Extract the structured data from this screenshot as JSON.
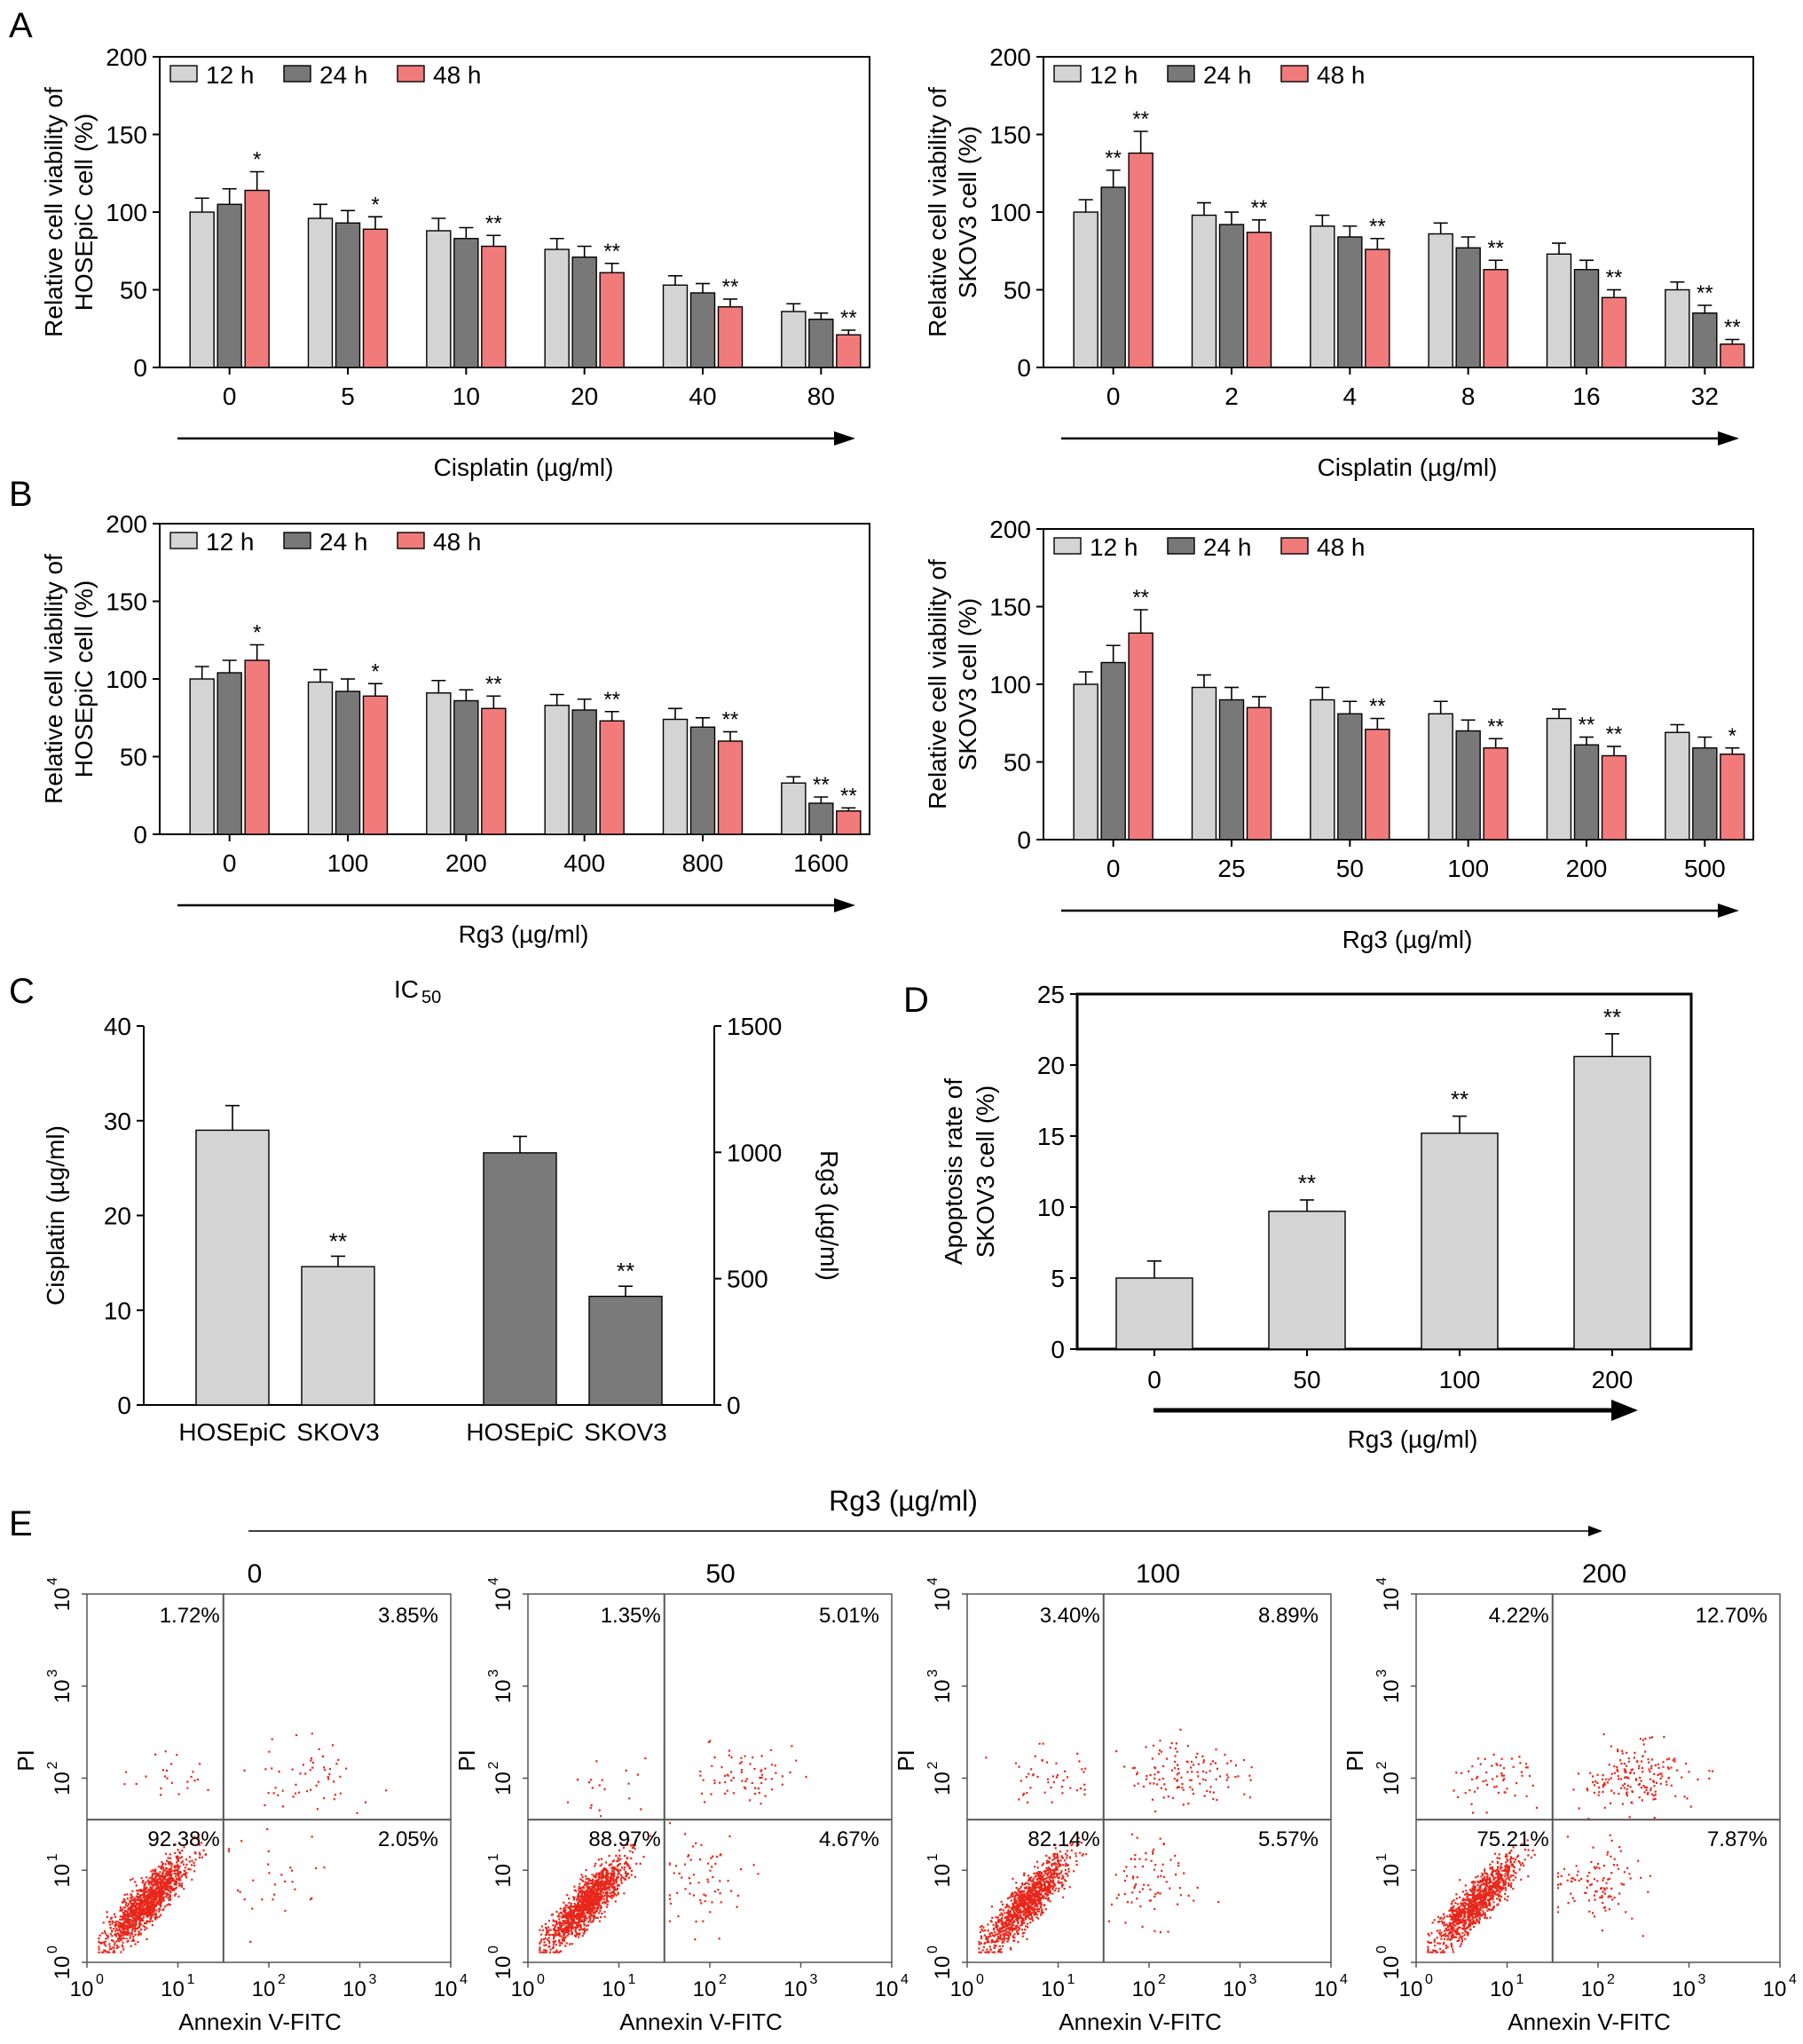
{
  "colors": {
    "h12": "#d4d4d4",
    "h24": "#787878",
    "h48": "#f17a7a",
    "dark": "#7a7a7a",
    "light": "#d4d4d4",
    "dots": "#e8261a",
    "stroke": "#000000"
  },
  "panel_labels": {
    "A": "A",
    "B": "B",
    "C": "C",
    "D": "D",
    "E": "E"
  },
  "chart_data": [
    {
      "id": "A-left",
      "type": "bar",
      "ylabel_lines": [
        "Relative cell viability of",
        "HOSEpiC cell (%)"
      ],
      "xlabel": "Cisplatin (µg/ml)",
      "ylim": [
        0,
        200
      ],
      "yticks": [
        "0",
        "50",
        "100",
        "150",
        "200"
      ],
      "categories": [
        "0",
        "5",
        "10",
        "20",
        "40",
        "80"
      ],
      "legend": [
        "12 h",
        "24 h",
        "48 h"
      ],
      "series": [
        {
          "name": "12 h",
          "values": [
            100,
            96,
            88,
            76,
            53,
            36
          ],
          "errors": [
            9,
            9,
            8,
            7,
            6,
            5
          ],
          "marks": [
            "",
            "",
            "",
            "",
            "",
            ""
          ]
        },
        {
          "name": "24 h",
          "values": [
            105,
            93,
            83,
            71,
            48,
            31
          ],
          "errors": [
            10,
            8,
            7,
            7,
            6,
            4
          ],
          "marks": [
            "",
            "",
            "",
            "",
            "",
            ""
          ]
        },
        {
          "name": "48 h",
          "values": [
            114,
            89,
            78,
            61,
            39,
            21
          ],
          "errors": [
            12,
            8,
            7,
            6,
            5,
            3
          ],
          "marks": [
            "*",
            "*",
            "**",
            "**",
            "**",
            "**"
          ]
        }
      ]
    },
    {
      "id": "A-right",
      "type": "bar",
      "ylabel_lines": [
        "Relative cell viability of",
        "SKOV3 cell (%)"
      ],
      "xlabel": "Cisplatin (µg/ml)",
      "ylim": [
        0,
        200
      ],
      "yticks": [
        "0",
        "50",
        "100",
        "150",
        "200"
      ],
      "categories": [
        "0",
        "2",
        "4",
        "8",
        "16",
        "32"
      ],
      "legend": [
        "12 h",
        "24 h",
        "48 h"
      ],
      "series": [
        {
          "name": "12 h",
          "values": [
            100,
            98,
            91,
            86,
            73,
            50
          ],
          "errors": [
            8,
            8,
            7,
            7,
            7,
            5
          ],
          "marks": [
            "",
            "",
            "",
            "",
            "",
            ""
          ]
        },
        {
          "name": "24 h",
          "values": [
            116,
            92,
            84,
            77,
            63,
            35
          ],
          "errors": [
            11,
            8,
            7,
            7,
            6,
            5
          ],
          "marks": [
            "**",
            "",
            "",
            "",
            "",
            "**"
          ]
        },
        {
          "name": "48 h",
          "values": [
            138,
            87,
            76,
            63,
            45,
            15
          ],
          "errors": [
            14,
            8,
            7,
            6,
            5,
            3
          ],
          "marks": [
            "**",
            "**",
            "**",
            "**",
            "**",
            "**"
          ]
        }
      ]
    },
    {
      "id": "B-left",
      "type": "bar",
      "ylabel_lines": [
        "Relative cell viability of",
        "HOSEpiC cell (%)"
      ],
      "xlabel": "Rg3 (µg/ml)",
      "ylim": [
        0,
        200
      ],
      "yticks": [
        "0",
        "50",
        "100",
        "150",
        "200"
      ],
      "categories": [
        "0",
        "100",
        "200",
        "400",
        "800",
        "1600"
      ],
      "legend": [
        "12 h",
        "24 h",
        "48 h"
      ],
      "series": [
        {
          "name": "12 h",
          "values": [
            100,
            98,
            91,
            83,
            74,
            33
          ],
          "errors": [
            8,
            8,
            8,
            7,
            7,
            4
          ],
          "marks": [
            "",
            "",
            "",
            "",
            "",
            ""
          ]
        },
        {
          "name": "24 h",
          "values": [
            104,
            92,
            86,
            80,
            69,
            20
          ],
          "errors": [
            8,
            8,
            7,
            7,
            6,
            4
          ],
          "marks": [
            "",
            "",
            "",
            "",
            "",
            "**"
          ]
        },
        {
          "name": "48 h",
          "values": [
            112,
            89,
            81,
            73,
            60,
            15
          ],
          "errors": [
            10,
            8,
            8,
            6,
            6,
            2
          ],
          "marks": [
            "*",
            "*",
            "**",
            "**",
            "**",
            "**"
          ]
        }
      ]
    },
    {
      "id": "B-right",
      "type": "bar",
      "ylabel_lines": [
        "Relative cell viability of",
        "SKOV3 cell (%)"
      ],
      "xlabel": "Rg3 (µg/ml)",
      "ylim": [
        0,
        200
      ],
      "yticks": [
        "0",
        "50",
        "100",
        "150",
        "200"
      ],
      "categories": [
        "0",
        "25",
        "50",
        "100",
        "200",
        "500"
      ],
      "legend": [
        "12 h",
        "24 h",
        "48 h"
      ],
      "series": [
        {
          "name": "12 h",
          "values": [
            100,
            98,
            90,
            81,
            78,
            69
          ],
          "errors": [
            8,
            8,
            8,
            8,
            6,
            5
          ],
          "marks": [
            "",
            "",
            "",
            "",
            "",
            ""
          ]
        },
        {
          "name": "24 h",
          "values": [
            114,
            90,
            81,
            70,
            61,
            59
          ],
          "errors": [
            11,
            8,
            8,
            7,
            5,
            7
          ],
          "marks": [
            "",
            "",
            "",
            "",
            "**",
            ""
          ]
        },
        {
          "name": "48 h",
          "values": [
            133,
            85,
            71,
            59,
            54,
            55
          ],
          "errors": [
            15,
            7,
            7,
            6,
            6,
            4
          ],
          "marks": [
            "**",
            "",
            "**",
            "**",
            "**",
            "*"
          ]
        }
      ]
    },
    {
      "id": "C",
      "type": "bar",
      "title": "IC",
      "title_sub": "50",
      "ylabel": "Cisplatin (µg/ml)",
      "y2label": "Rg3 (µg/ml)",
      "ylim": [
        0,
        40
      ],
      "yticks": [
        "0",
        "10",
        "20",
        "30",
        "40"
      ],
      "y2lim": [
        0,
        1500
      ],
      "y2ticks": [
        "0",
        "500",
        "1000",
        "1500"
      ],
      "categories": [
        "HOSEpiC",
        "SKOV3",
        "HOSEpiC",
        "SKOV3"
      ],
      "groups": [
        "Cisplatin",
        "Cisplatin",
        "Rg3",
        "Rg3"
      ],
      "axis": [
        "left",
        "left",
        "right",
        "right"
      ],
      "values": [
        29.0,
        14.6,
        998,
        430
      ],
      "errors": [
        2.6,
        1.1,
        65,
        40
      ],
      "marks": [
        "",
        "**",
        "",
        "**"
      ]
    },
    {
      "id": "D",
      "type": "bar",
      "ylabel_lines": [
        "Apoptosis rate of",
        "SKOV3 cell (%)"
      ],
      "xlabel": "Rg3 (µg/ml)",
      "ylim": [
        0,
        25
      ],
      "yticks": [
        "0",
        "5",
        "10",
        "15",
        "20",
        "25"
      ],
      "categories": [
        "0",
        "50",
        "100",
        "200"
      ],
      "values": [
        5.0,
        9.7,
        15.2,
        20.6
      ],
      "errors": [
        1.2,
        0.8,
        1.2,
        1.6
      ],
      "marks": [
        "",
        "**",
        "**",
        "**"
      ]
    },
    {
      "id": "E",
      "type": "scatter",
      "title": "Rg3 (µg/ml)",
      "xlabel": "Annexin V-FITC",
      "ylabel": "PI",
      "xticks": [
        "10",
        "10",
        "10",
        "10",
        "10"
      ],
      "tick_exps": [
        "0",
        "1",
        "2",
        "3",
        "4"
      ],
      "xlim_log": [
        0,
        4
      ],
      "ylim_log": [
        0,
        4
      ],
      "gate_log": [
        1.5,
        1.55
      ],
      "plots": [
        {
          "dose": "0",
          "q_ul": "1.72%",
          "q_ur": "3.85%",
          "q_ll": "92.38%",
          "q_lr": "2.05%",
          "pct": [
            1.72,
            3.85,
            92.38,
            2.05
          ]
        },
        {
          "dose": "50",
          "q_ul": "1.35%",
          "q_ur": "5.01%",
          "q_ll": "88.97%",
          "q_lr": "4.67%",
          "pct": [
            1.35,
            5.01,
            88.97,
            4.67
          ]
        },
        {
          "dose": "100",
          "q_ul": "3.40%",
          "q_ur": "8.89%",
          "q_ll": "82.14%",
          "q_lr": "5.57%",
          "pct": [
            3.4,
            8.89,
            82.14,
            5.57
          ]
        },
        {
          "dose": "200",
          "q_ul": "4.22%",
          "q_ur": "12.70%",
          "q_ll": "75.21%",
          "q_lr": "7.87%",
          "pct": [
            4.22,
            12.7,
            75.21,
            7.87
          ]
        }
      ]
    }
  ]
}
